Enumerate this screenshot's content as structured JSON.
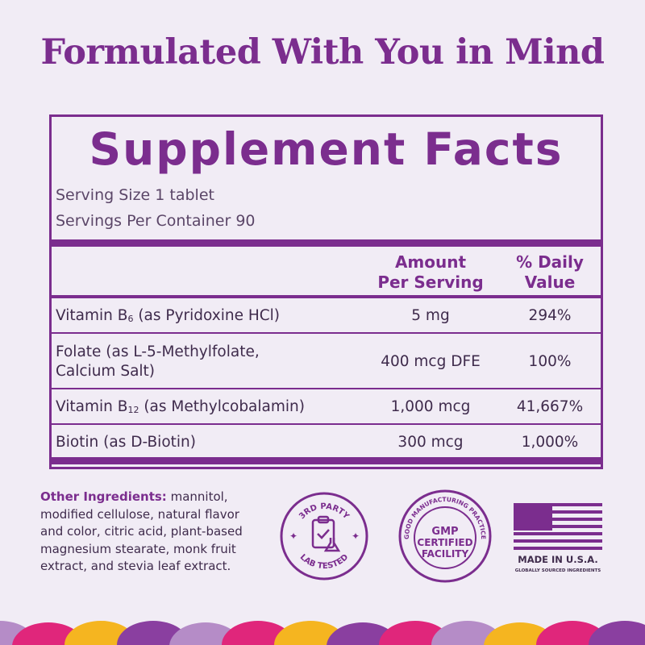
{
  "header": {
    "title": "Formulated With You in Mind"
  },
  "facts": {
    "title": "Supplement Facts",
    "serving_size": "Serving Size 1 tablet",
    "servings_per_container": "Servings Per Container 90",
    "columns": [
      [
        "Amount",
        "Per Serving"
      ],
      [
        "% Daily",
        "Value"
      ]
    ],
    "rows": [
      {
        "name": {
          "text": "Vitamin B",
          "sub": "6",
          "rest": "(as Pyridoxine HCl)"
        },
        "amount": "5 mg",
        "daily_value": "294%"
      },
      {
        "name": {
          "lines": [
            "Folate (as L-5-Methylfolate,",
            "Calcium Salt)"
          ]
        },
        "amount": "400 mcg DFE",
        "daily_value": "100%"
      },
      {
        "name": {
          "text": "Vitamin B",
          "sub": "12",
          "rest": "(as Methylcobalamin)"
        },
        "amount": "1,000 mcg",
        "daily_value": "41,667%"
      },
      {
        "name": {
          "text": "Biotin (as D-Biotin)"
        },
        "amount": "300 mcg",
        "daily_value": "1,000%"
      }
    ]
  },
  "other_ingredients": {
    "label": "Other Ingredients:",
    "text": "mannitol, modified cellulose, natural flavor and color, citric acid, plant-based magnesium stearate, monk fruit extract, and stevia leaf extract."
  },
  "badges": {
    "lab": {
      "top": "3RD PARTY",
      "bottom": "LAB TESTED"
    },
    "gmp": {
      "ring": "GOOD MANUFACTURING PRACTICE",
      "lines": [
        "GMP",
        "CERTIFIED",
        "FACILITY"
      ]
    },
    "usa": {
      "title": "MADE IN U.S.A.",
      "subtitle": "GLOBALLY SOURCED INGREDIENTS"
    }
  }
}
